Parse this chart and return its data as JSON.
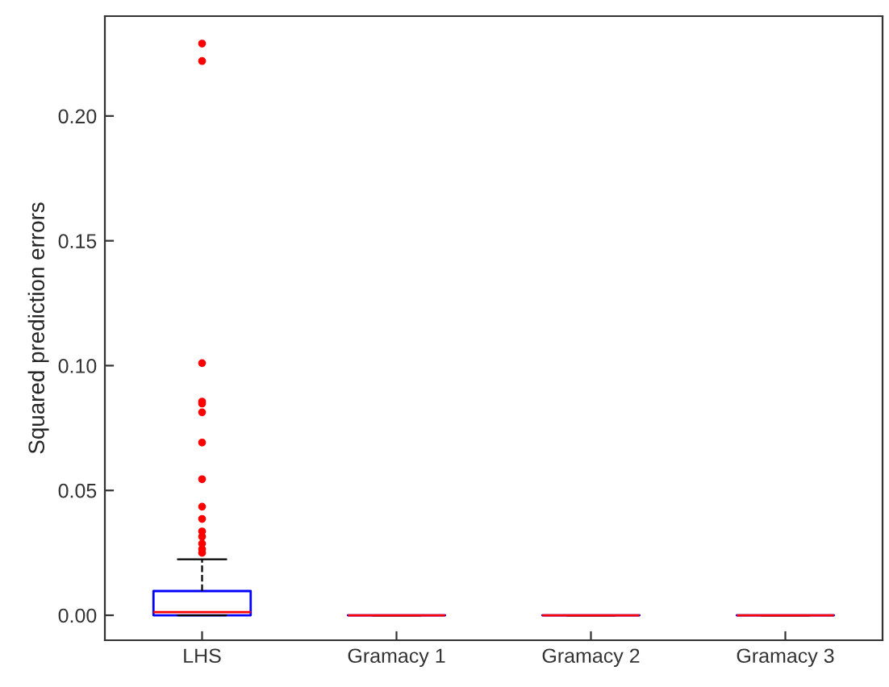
{
  "chart_data": {
    "type": "box",
    "ylabel": "Squared prediction errors",
    "categories": [
      "LHS",
      "Gramacy 1",
      "Gramacy 2",
      "Gramacy 3"
    ],
    "boxes": [
      {
        "low": 0,
        "q1": 0,
        "median": 0.0013,
        "q3": 0.0097,
        "high": 0.0224,
        "outliers": [
          0.229,
          0.222,
          0.101,
          0.0856,
          0.0848,
          0.0813,
          0.0692,
          0.0545,
          0.0435,
          0.0386,
          0.0336,
          0.0315,
          0.0287,
          0.0265,
          0.025
        ]
      },
      {
        "low": 0,
        "q1": 0,
        "median": 0,
        "q3": 0,
        "high": 0
      },
      {
        "low": 0,
        "q1": 0,
        "median": 0,
        "q3": 0,
        "high": 0
      },
      {
        "low": 0,
        "q1": 0,
        "median": 0,
        "q3": 0,
        "high": 0
      }
    ],
    "color": "#0000ff",
    "ylim": [
      -0.01,
      0.24
    ],
    "yticks": [
      {
        "value": 0,
        "label": "0.00"
      },
      {
        "value": 0.05,
        "label": "0.05"
      },
      {
        "value": 0.1,
        "label": "0.10"
      },
      {
        "value": 0.15,
        "label": "0.15"
      },
      {
        "value": 0.2,
        "label": "0.20"
      }
    ],
    "grid": false
  }
}
